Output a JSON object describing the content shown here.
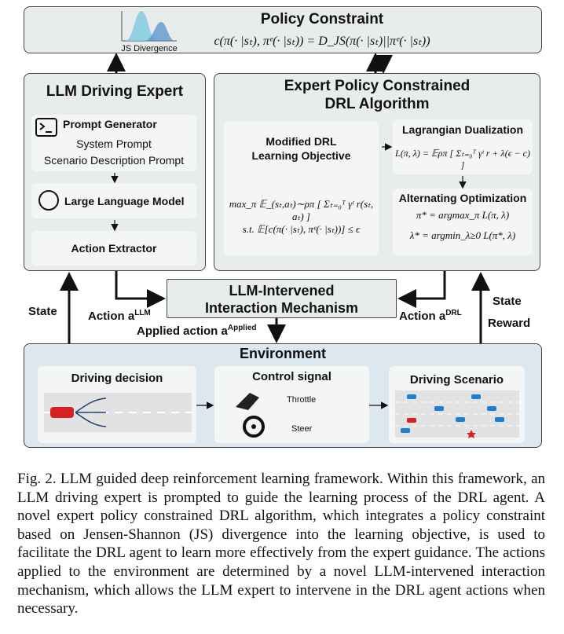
{
  "policy_constraint": {
    "title": "Policy Constraint",
    "formula": "c(π(· |sₜ), πᵉ(· |sₜ)) = D_JS(π(· |sₜ)||πᵉ(· |sₜ))",
    "icon_label": "JS Divergence"
  },
  "llm_expert": {
    "title": "LLM Driving Expert",
    "prompt_generator": {
      "title": "Prompt Generator",
      "items": [
        "System Prompt",
        "Scenario Description Prompt"
      ]
    },
    "llm": "Large Language Model",
    "extractor": "Action Extractor"
  },
  "drl": {
    "title_lines": [
      "Expert Policy Constrained",
      "DRL Algorithm"
    ],
    "objective": {
      "title_lines": [
        "Modified DRL",
        "Learning Objective"
      ],
      "formula_lines": [
        "max_π 𝔼_(sₜ,aₜ)∼ρπ [ Σₜ₌₀ᵀ γᵗ r(sₜ, aₜ) ]",
        "s.t. 𝔼[c(π(· |sₜ), πᵉ(· |sₜ))] ≤ ϵ"
      ]
    },
    "lagrangian": {
      "title": "Lagrangian Dualization",
      "formula": "L(π, λ) = 𝔼ρπ [ Σₜ₌₀ᵀ γᵗ r + λ(ϵ − c) ]"
    },
    "alternating": {
      "title": "Alternating Optimization",
      "formula_lines": [
        "π* = argmax_π L(π, λ)",
        "λ* = argmin_λ≥0 L(π*, λ)"
      ]
    }
  },
  "mechanism": {
    "title_lines": [
      "LLM-Intervened",
      "Interaction Mechanism"
    ]
  },
  "labels": {
    "state_left": "State",
    "action_llm": {
      "text": "Action a",
      "sup": "LLM"
    },
    "applied": {
      "text": "Applied action a",
      "sup": "Applied"
    },
    "action_drl": {
      "text": "Action a",
      "sup": "DRL"
    },
    "state_right": "State",
    "reward": "Reward"
  },
  "environment": {
    "title": "Environment",
    "decision": "Driving decision",
    "control": {
      "title": "Control signal",
      "throttle": "Throttle",
      "steer": "Steer"
    },
    "scenario": "Driving Scenario"
  },
  "caption": "Fig. 2.  LLM guided deep reinforcement learning framework. Within this framework, an LLM driving expert is prompted to guide the learning process of the DRL agent. A novel expert policy constrained DRL algorithm, which integrates a policy constraint based on Jensen-Shannon (JS) divergence into the learning objective, is used to facilitate the DRL agent to learn more effectively from the expert guidance. The actions applied to the environment are determined by a novel LLM-intervened interaction mechanism, which allows the LLM expert to intervene in the DRL agent actions when necessary."
}
